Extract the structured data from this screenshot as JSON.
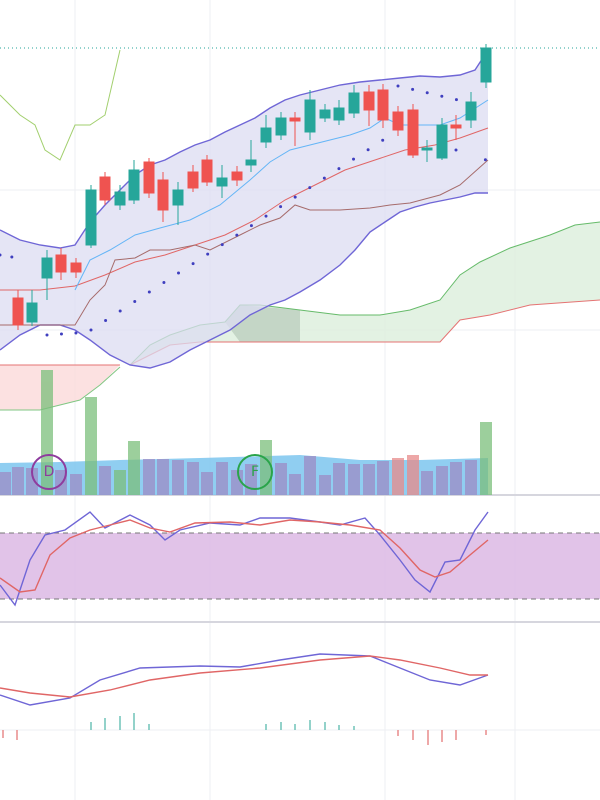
{
  "markers": [
    {
      "label": "D"
    },
    {
      "label": "F"
    }
  ]
}
